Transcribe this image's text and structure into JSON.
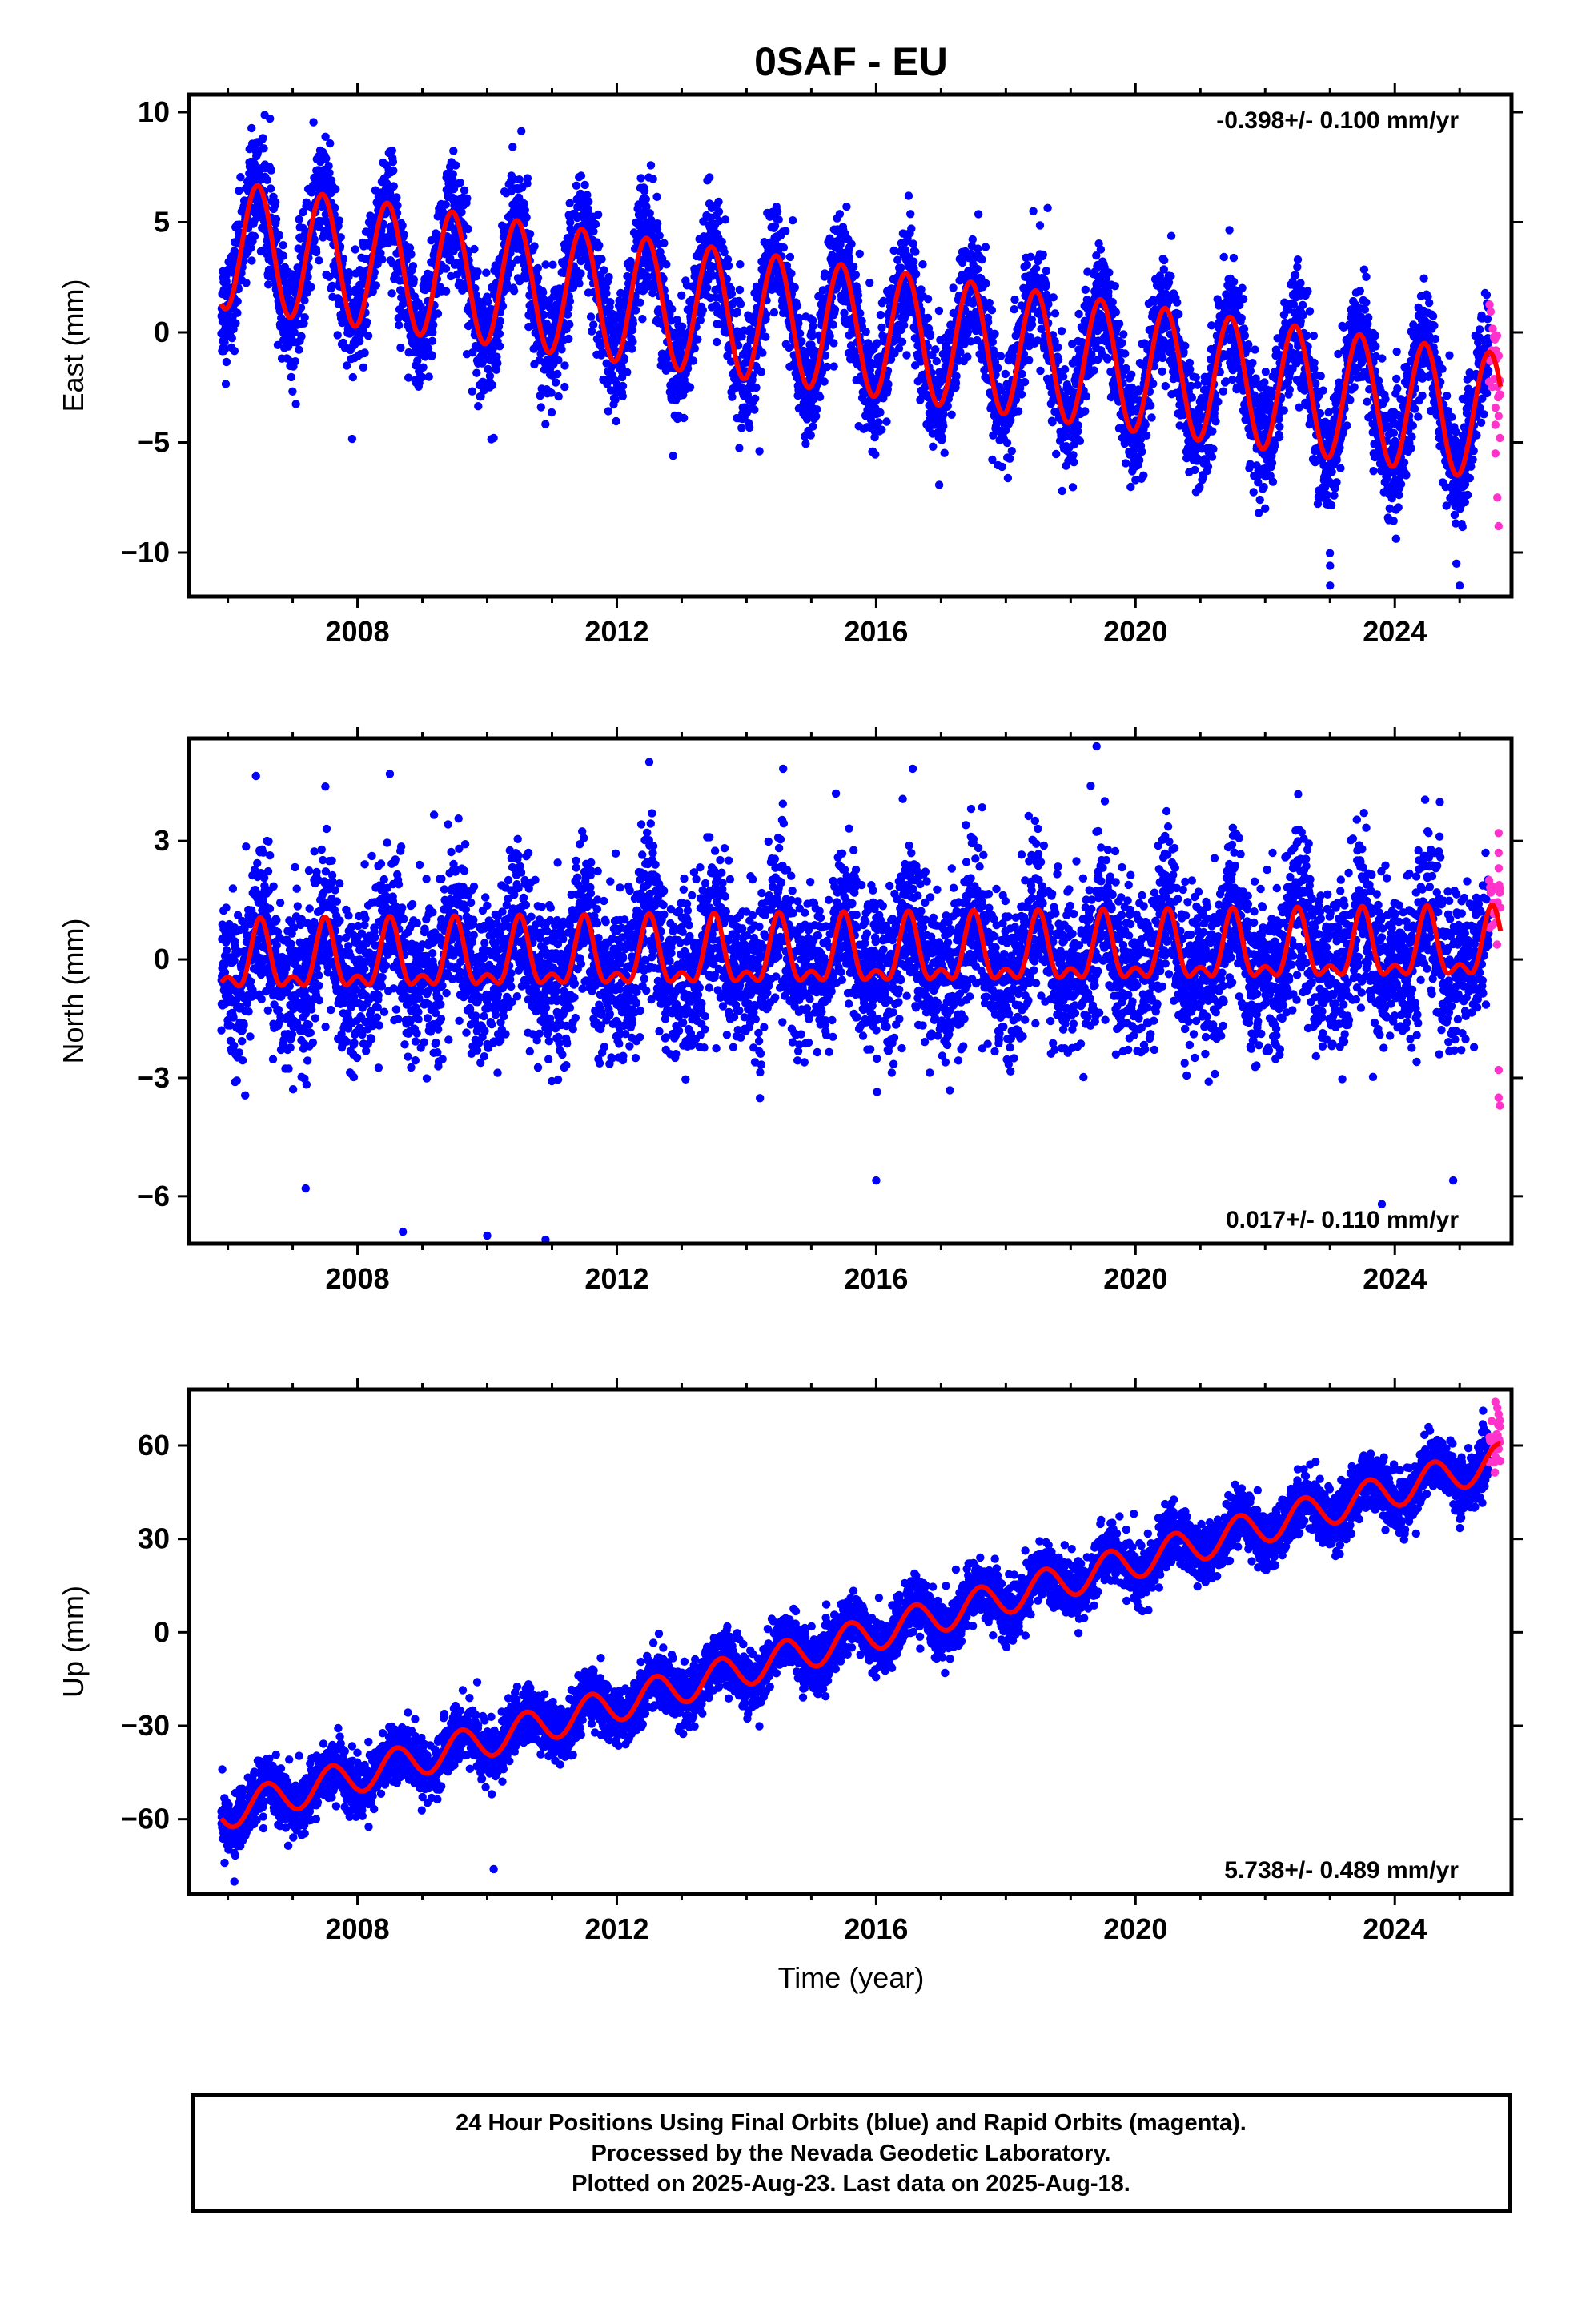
{
  "figure": {
    "title": "0SAF - EU",
    "xlabel": "Time (year)",
    "footer": [
      "24 Hour Positions Using Final Orbits (blue) and Rapid Orbits (magenta).",
      "Processed by the Nevada Geodetic Laboratory.",
      "Plotted on 2025-Aug-23. Last data on 2025-Aug-18."
    ],
    "colors": {
      "final": "#0000ff",
      "rapid": "#ff33cc",
      "model": "#ff0000",
      "frame": "#000000"
    }
  },
  "chart_data": [
    {
      "type": "scatter",
      "ylabel": "East (mm)",
      "annotation": "-0.398+/- 0.100 mm/yr",
      "xlim": [
        2005.4,
        2025.8
      ],
      "ylim": [
        -12,
        10.8
      ],
      "xticks": [
        2008,
        2012,
        2016,
        2020,
        2024
      ],
      "yticks": [
        -10,
        -5,
        0,
        5,
        10
      ],
      "data_start": 2005.9,
      "final_end": 2025.45,
      "last_data": 2025.63,
      "model": {
        "offset": 3.95,
        "rate": -0.398,
        "annual_amp": 2.9,
        "annual_peak": 0.46,
        "semiannual_amp": 0.0,
        "semiannual_peak": 0.0
      },
      "scatter_sigma": 1.3,
      "outliers_final": [
        [
          2023.0,
          -10.6
        ],
        [
          2023.0,
          -11.5
        ],
        [
          2024.95,
          -10.5
        ],
        [
          2025.0,
          -11.5
        ],
        [
          2010.1,
          -4.8
        ],
        [
          2014.2,
          -5.4
        ],
        [
          2021.9,
          -8.2
        ]
      ],
      "rapid_points": [
        [
          2025.55,
          -5.5
        ],
        [
          2025.58,
          -7.5
        ],
        [
          2025.6,
          -8.8
        ],
        [
          2025.62,
          -4.8
        ],
        [
          2025.6,
          -3.8
        ],
        [
          2025.55,
          -4.2
        ]
      ]
    },
    {
      "type": "scatter",
      "ylabel": "North (mm)",
      "annotation": "0.017+/- 0.110 mm/yr",
      "xlim": [
        2005.4,
        2025.8
      ],
      "ylim": [
        -7.2,
        5.6
      ],
      "xticks": [
        2008,
        2012,
        2016,
        2020,
        2024
      ],
      "yticks": [
        -6,
        -3,
        0,
        3
      ],
      "data_start": 2005.9,
      "final_end": 2025.45,
      "last_data": 2025.63,
      "model": {
        "offset": -0.1,
        "rate": 0.017,
        "annual_amp": 0.75,
        "annual_peak": 0.5,
        "semiannual_amp": 0.4,
        "semiannual_peak": 0.5
      },
      "scatter_sigma": 1.0,
      "outliers_final": [
        [
          2008.7,
          -6.9
        ],
        [
          2010.0,
          -7.0
        ],
        [
          2010.9,
          -7.1
        ],
        [
          2007.2,
          -5.8
        ],
        [
          2016.0,
          -5.6
        ],
        [
          2024.9,
          -5.6
        ],
        [
          2023.8,
          -6.2
        ],
        [
          2019.4,
          5.4
        ],
        [
          2012.5,
          5.0
        ],
        [
          2008.5,
          4.7
        ]
      ],
      "rapid_points": [
        [
          2025.6,
          3.2
        ],
        [
          2025.6,
          2.7
        ],
        [
          2025.62,
          1.8
        ],
        [
          2025.6,
          -2.8
        ],
        [
          2025.6,
          -3.5
        ],
        [
          2025.62,
          -3.7
        ]
      ]
    },
    {
      "type": "scatter",
      "ylabel": "Up (mm)",
      "annotation": "5.738+/- 0.489 mm/yr",
      "xlim": [
        2005.4,
        2025.8
      ],
      "ylim": [
        -84,
        78
      ],
      "xticks": [
        2008,
        2012,
        2016,
        2020,
        2024
      ],
      "yticks": [
        -60,
        -30,
        0,
        30,
        60
      ],
      "data_start": 2005.9,
      "final_end": 2025.45,
      "last_data": 2025.63,
      "model": {
        "offset": -57.5,
        "rate": 5.738,
        "annual_amp": 5.5,
        "annual_peak": 0.6,
        "semiannual_amp": 0.0,
        "semiannual_peak": 0.0
      },
      "scatter_sigma": 4.5,
      "outliers_final": [
        [
          2006.1,
          -80
        ],
        [
          2010.1,
          -76
        ],
        [
          2005.95,
          -74
        ]
      ],
      "rapid_points": [
        [
          2025.55,
          74
        ],
        [
          2025.58,
          72
        ],
        [
          2025.6,
          70
        ],
        [
          2025.62,
          66
        ],
        [
          2025.6,
          62
        ],
        [
          2025.58,
          60
        ],
        [
          2025.62,
          68
        ]
      ]
    }
  ]
}
